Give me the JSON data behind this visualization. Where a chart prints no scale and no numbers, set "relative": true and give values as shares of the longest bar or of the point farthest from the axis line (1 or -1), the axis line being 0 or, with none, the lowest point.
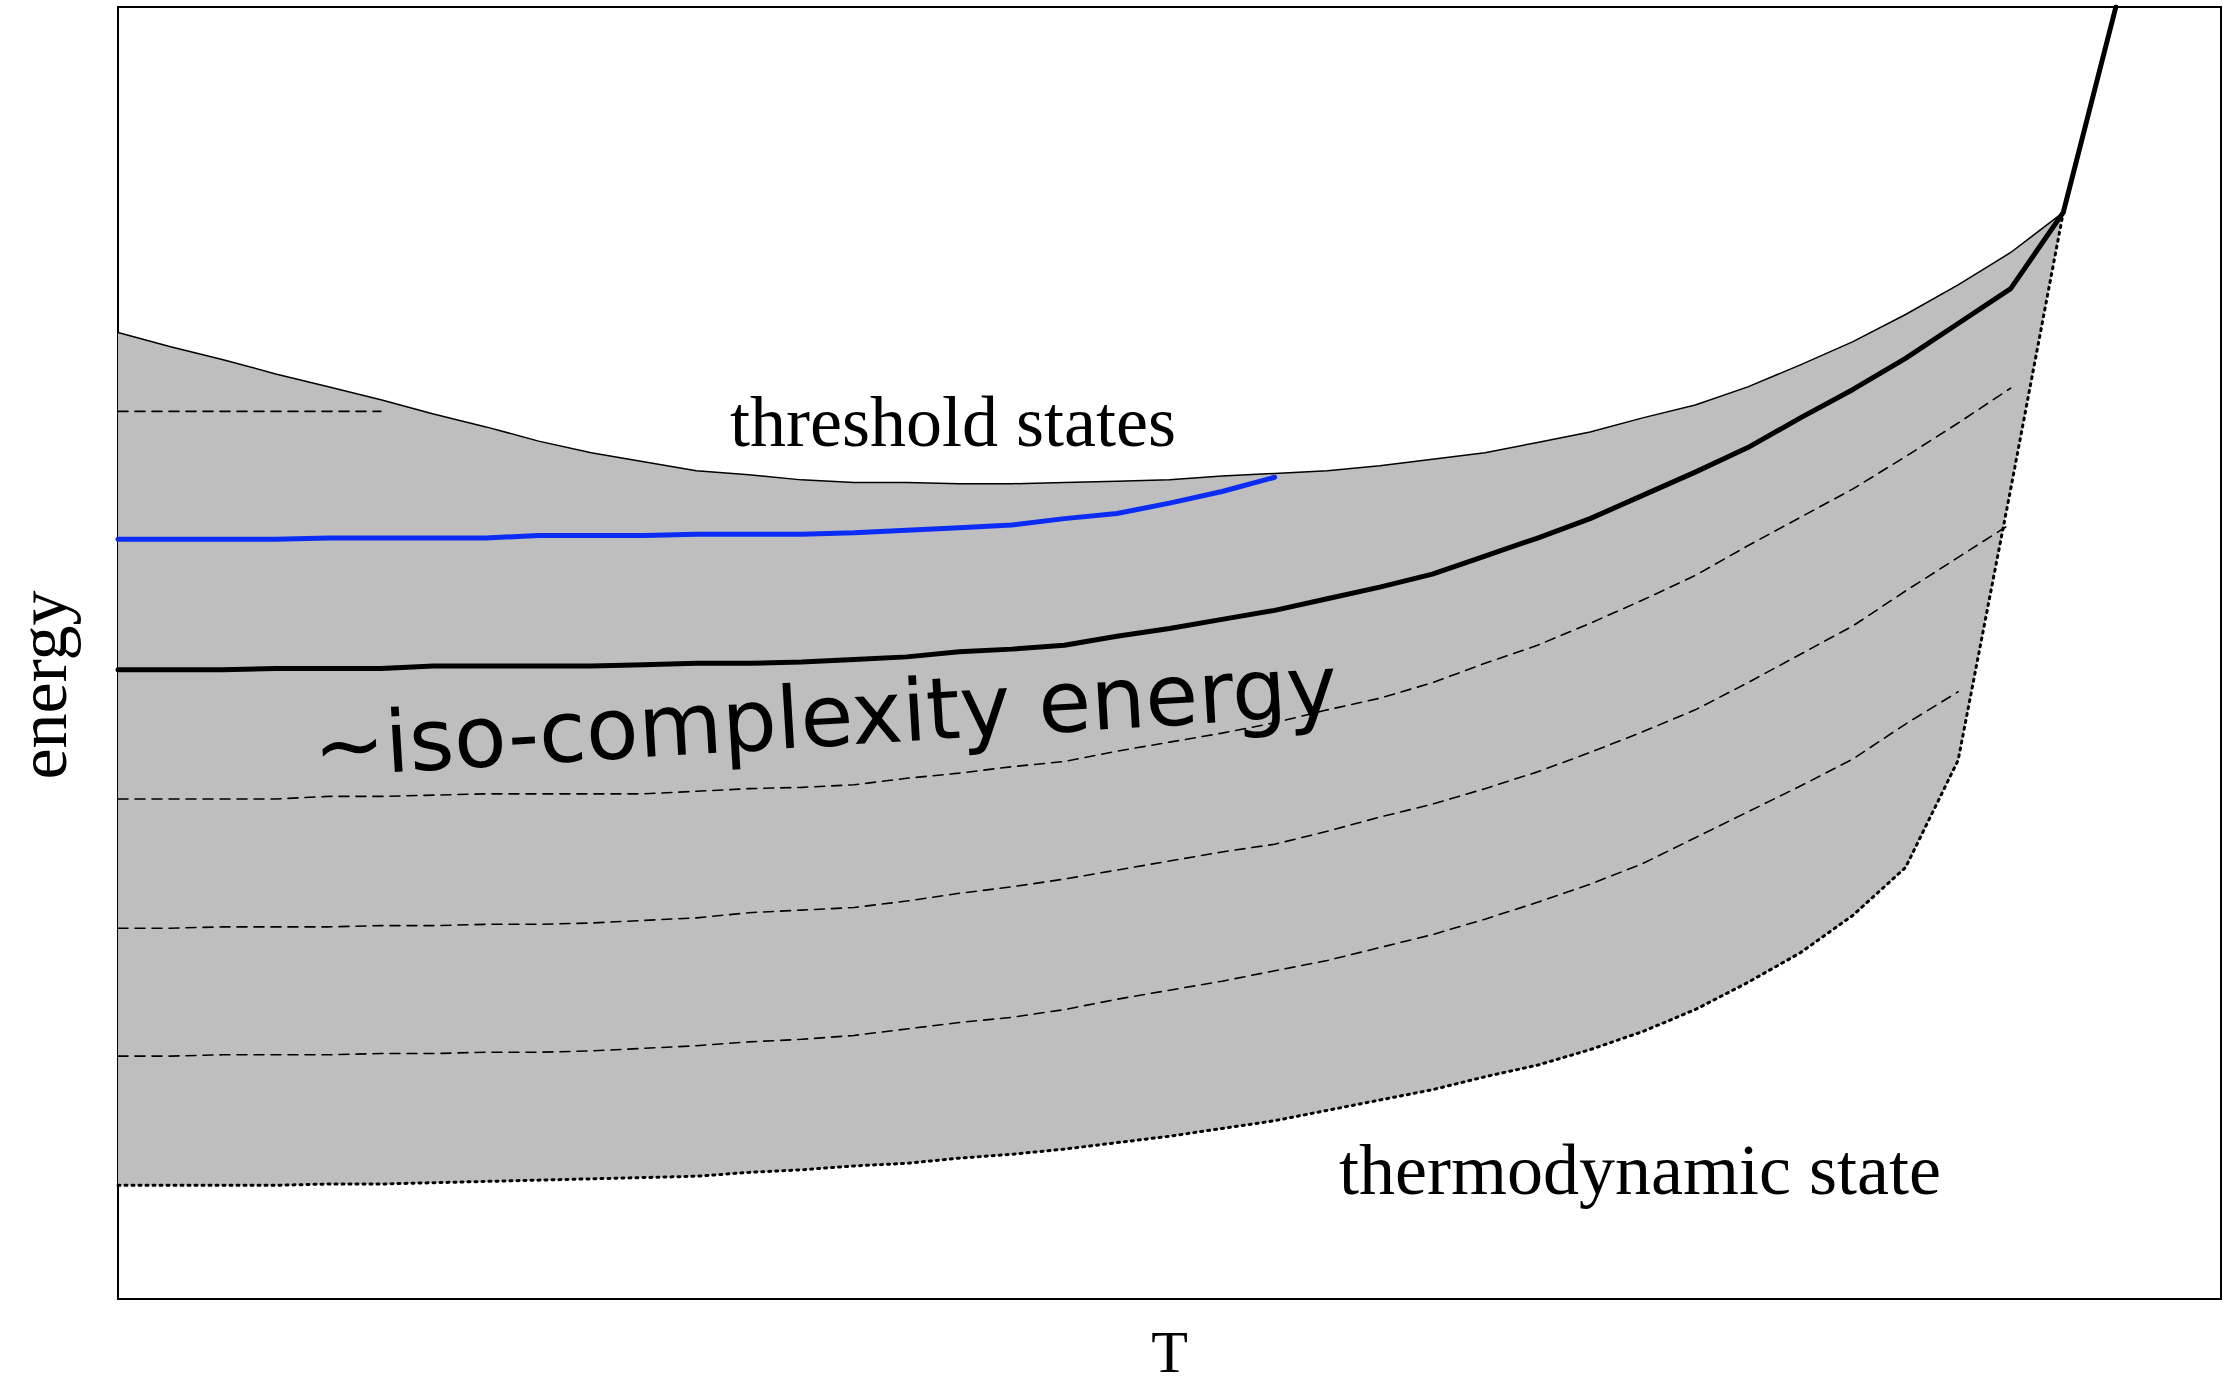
{
  "chart_data": {
    "type": "line",
    "relative": true,
    "xlabel": "T",
    "ylabel": "energy",
    "annotations": [
      "threshold states",
      "~iso-complexity energy",
      "thermodynamic state"
    ],
    "categories": [
      null,
      null,
      null,
      null,
      null,
      null,
      null,
      null,
      null,
      null,
      null,
      null,
      null,
      null,
      null,
      null,
      null,
      null,
      null,
      null,
      null,
      null,
      null,
      null,
      null,
      null,
      null,
      null,
      null,
      null,
      null,
      null,
      null,
      null,
      null,
      null,
      null,
      null,
      null,
      null,
      null
    ],
    "series": [
      {
        "color": "#000000",
        "line_style": "solid",
        "values": [
          0.748,
          0.737,
          0.727,
          0.716,
          0.706,
          0.696,
          0.685,
          0.675,
          0.664,
          0.655,
          0.648,
          0.641,
          0.638,
          0.634,
          0.632,
          0.632,
          0.631,
          0.631,
          0.632,
          0.633,
          0.634,
          0.637,
          0.639,
          0.641,
          0.645,
          0.65,
          0.655,
          0.663,
          0.671,
          0.682,
          0.692,
          0.706,
          0.723,
          0.741,
          0.762,
          0.785,
          0.81,
          0.841,
          null,
          null,
          null
        ],
        "upper": [
          0.748,
          0.737,
          0.727,
          0.716,
          0.706,
          0.696,
          0.685,
          0.675,
          0.664,
          0.655,
          0.648,
          0.641,
          0.638,
          0.634,
          0.632,
          0.632,
          0.631,
          0.631,
          0.632,
          0.633,
          0.634,
          0.637,
          0.639,
          0.641,
          0.645,
          0.65,
          0.655,
          0.663,
          0.671,
          0.682,
          0.692,
          0.706,
          0.723,
          0.741,
          0.762,
          0.785,
          0.81,
          0.841,
          null,
          null,
          null
        ],
        "lower": [
          0.088,
          0.088,
          0.088,
          0.088,
          0.089,
          0.089,
          0.09,
          0.091,
          0.092,
          0.093,
          0.094,
          0.095,
          0.098,
          0.1,
          0.103,
          0.105,
          0.109,
          0.112,
          0.116,
          0.121,
          0.126,
          0.132,
          0.138,
          0.146,
          0.154,
          0.162,
          0.172,
          0.181,
          0.193,
          0.207,
          0.224,
          0.245,
          0.268,
          0.297,
          0.334,
          0.417,
          0.627,
          0.841,
          null,
          null,
          null
        ]
      },
      {
        "color": "#000000",
        "line_style": "dotted",
        "values": [
          0.088,
          0.088,
          0.088,
          0.088,
          0.089,
          0.089,
          0.09,
          0.091,
          0.092,
          0.093,
          0.094,
          0.095,
          0.098,
          0.1,
          0.103,
          0.105,
          0.109,
          0.112,
          0.116,
          0.121,
          0.126,
          0.132,
          0.138,
          0.146,
          0.154,
          0.162,
          0.172,
          0.181,
          0.193,
          0.207,
          0.224,
          0.245,
          0.268,
          0.297,
          0.334,
          0.417,
          0.627,
          0.841,
          null,
          null,
          null
        ]
      },
      {
        "color": "#000000",
        "line_style": "dashed",
        "values": [
          0.687,
          0.687,
          0.687,
          0.687,
          0.687,
          0.687,
          null,
          null,
          null,
          null,
          null,
          null,
          null,
          null,
          null,
          null,
          null,
          null,
          null,
          null,
          null,
          null,
          null,
          null,
          null,
          null,
          null,
          null,
          null,
          null,
          null,
          null,
          null,
          null,
          null,
          null,
          null,
          null,
          null,
          null,
          null
        ]
      },
      {
        "color": "#000000",
        "line_style": "dashed",
        "values": [
          0.387,
          0.387,
          0.387,
          0.387,
          0.389,
          0.389,
          0.39,
          0.391,
          0.391,
          0.391,
          0.391,
          0.393,
          0.395,
          0.396,
          0.398,
          0.403,
          0.407,
          0.412,
          0.416,
          0.424,
          0.431,
          0.438,
          0.446,
          0.456,
          0.465,
          0.477,
          0.492,
          0.506,
          0.523,
          0.541,
          0.56,
          0.583,
          0.605,
          0.627,
          0.652,
          0.678,
          0.705,
          null,
          null,
          null,
          null
        ]
      },
      {
        "color": "#000000",
        "line_style": "dashed",
        "values": [
          0.287,
          0.287,
          0.288,
          0.288,
          0.288,
          0.289,
          0.289,
          0.29,
          0.29,
          0.291,
          0.293,
          0.295,
          0.299,
          0.301,
          0.303,
          0.308,
          0.314,
          0.319,
          0.325,
          0.332,
          0.339,
          0.346,
          0.352,
          0.362,
          0.373,
          0.383,
          0.395,
          0.408,
          0.423,
          0.439,
          0.456,
          0.477,
          0.499,
          0.521,
          0.548,
          0.574,
          0.6,
          null,
          null,
          null,
          null
        ]
      },
      {
        "color": "#000000",
        "line_style": "dashed",
        "values": [
          0.188,
          0.188,
          0.189,
          0.189,
          0.189,
          0.19,
          0.19,
          0.191,
          0.191,
          0.192,
          0.194,
          0.196,
          0.199,
          0.201,
          0.204,
          0.209,
          0.214,
          0.218,
          0.224,
          0.232,
          0.239,
          0.246,
          0.254,
          0.262,
          0.272,
          0.282,
          0.294,
          0.307,
          0.321,
          0.337,
          0.357,
          0.377,
          0.397,
          0.418,
          0.445,
          0.47,
          null,
          null,
          null,
          null,
          null
        ]
      },
      {
        "color": "#0a2cf5",
        "line_style": "solid",
        "values": [
          0.588,
          0.588,
          0.588,
          0.588,
          0.589,
          0.589,
          0.589,
          0.589,
          0.591,
          0.591,
          0.591,
          0.592,
          0.592,
          0.592,
          0.593,
          0.595,
          0.597,
          0.599,
          0.604,
          0.608,
          0.616,
          0.625,
          0.636,
          null,
          null,
          null,
          null,
          null,
          null,
          null,
          null,
          null,
          null,
          null,
          null,
          null,
          null,
          null,
          null,
          null,
          null
        ]
      },
      {
        "color": "#000000",
        "line_style": "solid",
        "values": [
          0.487,
          0.487,
          0.487,
          0.488,
          0.488,
          0.488,
          0.49,
          0.49,
          0.49,
          0.49,
          0.491,
          0.492,
          0.492,
          0.493,
          0.495,
          0.497,
          0.501,
          0.503,
          0.506,
          0.513,
          0.519,
          0.526,
          0.533,
          0.542,
          0.551,
          0.561,
          0.575,
          0.589,
          0.604,
          0.622,
          0.64,
          0.659,
          0.682,
          0.704,
          0.728,
          0.755,
          0.782,
          0.841,
          1,
          null,
          null
        ]
      }
    ]
  }
}
